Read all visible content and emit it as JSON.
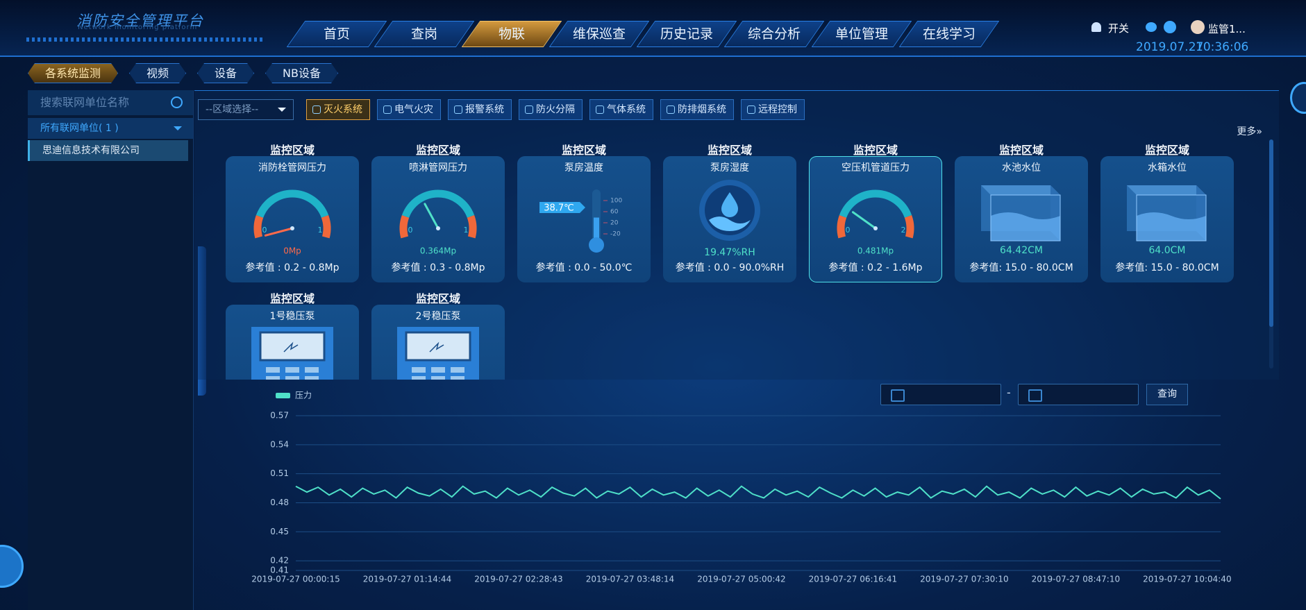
{
  "header": {
    "title": "消防安全管理平台",
    "subtitle": "Network monitoring platform",
    "nav": [
      "首页",
      "查岗",
      "物联",
      "维保巡查",
      "历史记录",
      "综合分析",
      "单位管理",
      "在线学习"
    ],
    "switch": "开关",
    "user": "监管1...",
    "date": "2019.07.27",
    "time": "10:36:06"
  },
  "tabs": [
    "各系统监测",
    "视频",
    "设备",
    "NB设备"
  ],
  "sidebar": {
    "search_placeholder": "搜索联网单位名称",
    "group": "所有联网单位( 1 )",
    "units": [
      "思迪信息技术有限公司"
    ]
  },
  "filters": {
    "region_select": "--区域选择--",
    "systems": [
      "灭火系统",
      "电气火灾",
      "报警系统",
      "防火分隔",
      "气体系统",
      "防排烟系统",
      "远程控制"
    ],
    "more": "更多»"
  },
  "cards": [
    {
      "region": "监控区域",
      "name": "消防栓管网压力",
      "kind": "gauge",
      "min": 0,
      "max": 1,
      "value": 0,
      "value_label": "0Mp",
      "label_color": "#ff6a4a",
      "reference": "参考值 : 0.2 - 0.8Mp"
    },
    {
      "region": "监控区域",
      "name": "喷淋管网压力",
      "kind": "gauge",
      "min": 0,
      "max": 1,
      "value": 0.364,
      "value_label": "0.364Mp",
      "label_color": "#4fe0c8",
      "reference": "参考值 : 0.3 - 0.8Mp"
    },
    {
      "region": "监控区域",
      "name": "泵房温度",
      "kind": "thermometer",
      "scale": [
        100,
        60,
        20,
        -20
      ],
      "value": 38.7,
      "value_label": "38.7℃",
      "reference": "参考值 : 0.0 - 50.0℃"
    },
    {
      "region": "监控区域",
      "name": "泵房湿度",
      "kind": "humidity",
      "reading": "19.47%RH",
      "reference": "参考值 : 0.0 - 90.0%RH"
    },
    {
      "region": "监控区域",
      "name": "空压机管道压力",
      "kind": "gauge",
      "min": 0,
      "max": 2,
      "value": 0.481,
      "value_label": "0.481Mp",
      "label_color": "#4fe0c8",
      "reference": "参考值 : 0.2 - 1.6Mp",
      "selected": true
    },
    {
      "region": "监控区域",
      "name": "水池水位",
      "kind": "tank",
      "reading": "64.42CM",
      "reference": "参考值: 15.0 - 80.0CM"
    },
    {
      "region": "监控区域",
      "name": "水箱水位",
      "kind": "tank",
      "reading": "64.0CM",
      "reference": "参考值: 15.0 - 80.0CM"
    },
    {
      "region": "监控区域",
      "name": "1号稳压泵",
      "kind": "pump"
    },
    {
      "region": "监控区域",
      "name": "2号稳压泵",
      "kind": "pump"
    }
  ],
  "query": {
    "separator": "-",
    "button": "查询"
  },
  "chart_data": {
    "type": "line",
    "categories": [
      "2019-07-27 00:00:15",
      null,
      null,
      null,
      null,
      null,
      null,
      null,
      null,
      null,
      "2019-07-27 01:14:44",
      null,
      null,
      null,
      null,
      null,
      null,
      null,
      null,
      null,
      "2019-07-27 02:28:43",
      null,
      null,
      null,
      null,
      null,
      null,
      null,
      null,
      null,
      "2019-07-27 03:48:14",
      null,
      null,
      null,
      null,
      null,
      null,
      null,
      null,
      null,
      "2019-07-27 05:00:42",
      null,
      null,
      null,
      null,
      null,
      null,
      null,
      null,
      null,
      "2019-07-27 06:16:41",
      null,
      null,
      null,
      null,
      null,
      null,
      null,
      null,
      null,
      "2019-07-27 07:30:10",
      null,
      null,
      null,
      null,
      null,
      null,
      null,
      null,
      null,
      "2019-07-27 08:47:10",
      null,
      null,
      null,
      null,
      null,
      null,
      null,
      null,
      null,
      "2019-07-27 10:04:40",
      null,
      null,
      null
    ],
    "series": [
      {
        "name": "压力",
        "color": "#4fe0c8",
        "values": [
          0.497,
          0.491,
          0.496,
          0.488,
          0.494,
          0.486,
          0.495,
          0.489,
          0.493,
          0.485,
          0.496,
          0.49,
          0.487,
          0.494,
          0.486,
          0.497,
          0.489,
          0.492,
          0.485,
          0.495,
          0.488,
          0.493,
          0.486,
          0.496,
          0.49,
          0.487,
          0.495,
          0.485,
          0.492,
          0.489,
          0.496,
          0.486,
          0.494,
          0.488,
          0.491,
          0.485,
          0.495,
          0.487,
          0.493,
          0.486,
          0.497,
          0.489,
          0.485,
          0.494,
          0.488,
          0.492,
          0.486,
          0.496,
          0.49,
          0.485,
          0.493,
          0.487,
          0.495,
          0.486,
          0.491,
          0.488,
          0.496,
          0.485,
          0.492,
          0.489,
          0.494,
          0.486,
          0.497,
          0.488,
          0.491,
          0.485,
          0.495,
          0.489,
          0.493,
          0.486,
          0.496,
          0.487,
          0.492,
          0.488,
          0.495,
          0.486,
          0.494,
          0.489,
          0.491,
          0.485,
          0.496,
          0.488,
          0.493,
          0.484
        ]
      }
    ],
    "ylim": [
      0.41,
      0.57
    ],
    "yticks": [
      0.41,
      0.42,
      0.45,
      0.48,
      0.51,
      0.54,
      0.57
    ],
    "grid": true
  }
}
